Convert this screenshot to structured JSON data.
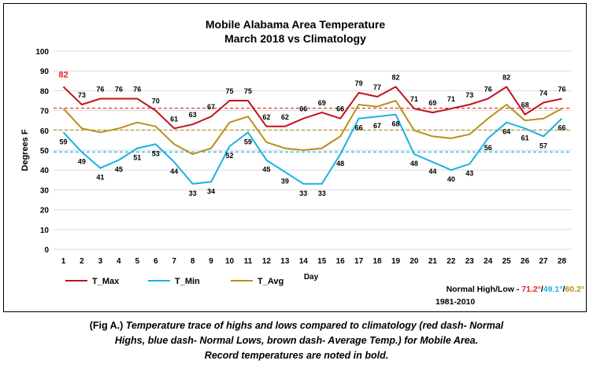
{
  "chart_data": {
    "type": "line",
    "title": "Mobile Alabama Area Temperature",
    "subtitle": "March 2018 vs Climatology",
    "xlabel": "Day",
    "ylabel": "Degrees F",
    "ylim": [
      0,
      100
    ],
    "yticks": [
      0,
      10,
      20,
      30,
      40,
      50,
      60,
      70,
      80,
      90,
      100
    ],
    "grid": true,
    "legend_position": "bottom-left",
    "x": [
      1,
      2,
      3,
      4,
      5,
      6,
      7,
      8,
      9,
      10,
      11,
      12,
      13,
      14,
      15,
      16,
      17,
      18,
      19,
      20,
      21,
      22,
      23,
      24,
      25,
      26,
      27,
      28
    ],
    "series": [
      {
        "name": "T_Max",
        "color": "#c0141c",
        "values": [
          82,
          73,
          76,
          76,
          76,
          70,
          61,
          63,
          67,
          75,
          75,
          62,
          62,
          66,
          69,
          66,
          79,
          77,
          82,
          71,
          69,
          71,
          73,
          76,
          82,
          68,
          74,
          76
        ],
        "label_position": "above",
        "record_index": 0,
        "record_color": "#e8201e"
      },
      {
        "name": "T_Min",
        "color": "#1ab0e6",
        "values": [
          59,
          49,
          41,
          45,
          51,
          53,
          44,
          33,
          34,
          52,
          59,
          45,
          39,
          33,
          33,
          48,
          66,
          67,
          68,
          48,
          44,
          40,
          43,
          56,
          64,
          61,
          57,
          66
        ],
        "label_position": "below"
      },
      {
        "name": "T_Avg",
        "color": "#b8901a",
        "values": [
          71,
          61,
          59,
          61,
          64,
          62,
          53,
          48,
          51,
          64,
          67,
          54,
          51,
          50,
          51,
          57,
          73,
          72,
          75,
          60,
          57,
          56,
          58,
          66,
          73,
          65,
          66,
          71
        ],
        "label_position": "none"
      }
    ],
    "normals": [
      {
        "name": "Normal High",
        "value": 71.2,
        "color": "#e8201e"
      },
      {
        "name": "Normal Low",
        "value": 49.1,
        "color": "#1ab0e6"
      },
      {
        "name": "Average",
        "value": 60.2,
        "color": "#b8901a"
      }
    ],
    "annotation": {
      "prefix": "Normal High/Low - ",
      "high": "71.2°",
      "slash1": "/",
      "low": "49.1°",
      "slash2": "/",
      "avg": "60.2°",
      "period": "1981-2010"
    }
  },
  "caption": {
    "line1_prefix": "(Fig A.) ",
    "line1_italic": "Temperature trace of highs and lows compared to climatology (red dash- Normal",
    "line2": "Highs, blue dash- Normal Lows, brown dash- Average Temp.) for Mobile Area.",
    "line3": "Record temperatures are noted in bold."
  }
}
